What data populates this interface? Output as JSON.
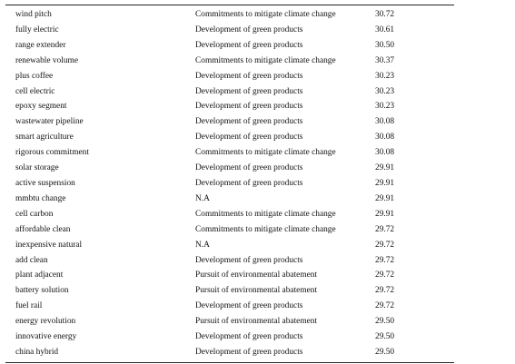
{
  "table": {
    "rows": [
      {
        "term": "wind pitch",
        "category": "Commitments to mitigate climate change",
        "value": "30.72"
      },
      {
        "term": "fully electric",
        "category": "Development of green products",
        "value": "30.61"
      },
      {
        "term": "range extender",
        "category": "Development of green products",
        "value": "30.50"
      },
      {
        "term": "renewable volume",
        "category": "Commitments to mitigate climate change",
        "value": "30.37"
      },
      {
        "term": "plus coffee",
        "category": "Development of green products",
        "value": "30.23"
      },
      {
        "term": "cell electric",
        "category": "Development of green products",
        "value": "30.23"
      },
      {
        "term": "epoxy segment",
        "category": "Development of green products",
        "value": "30.23"
      },
      {
        "term": "wastewater pipeline",
        "category": "Development of green products",
        "value": "30.08"
      },
      {
        "term": "smart agriculture",
        "category": "Development of green products",
        "value": "30.08"
      },
      {
        "term": "rigorous commitment",
        "category": "Commitments to mitigate climate change",
        "value": "30.08"
      },
      {
        "term": "solar storage",
        "category": "Development of green products",
        "value": "29.91"
      },
      {
        "term": "active suspension",
        "category": "Development of green products",
        "value": "29.91"
      },
      {
        "term": "mmbtu change",
        "category": "N.A",
        "value": "29.91"
      },
      {
        "term": "cell carbon",
        "category": "Commitments to mitigate climate change",
        "value": "29.91"
      },
      {
        "term": "affordable clean",
        "category": "Commitments to mitigate climate change",
        "value": "29.72"
      },
      {
        "term": "inexpensive natural",
        "category": "N.A",
        "value": "29.72"
      },
      {
        "term": "add clean",
        "category": "Development of green products",
        "value": "29.72"
      },
      {
        "term": "plant adjacent",
        "category": "Pursuit of environmental abatement",
        "value": "29.72"
      },
      {
        "term": "battery solution",
        "category": "Pursuit of environmental abatement",
        "value": "29.72"
      },
      {
        "term": "fuel rail",
        "category": "Development of green products",
        "value": "29.72"
      },
      {
        "term": "energy revolution",
        "category": "Pursuit of environmental abatement",
        "value": "29.50"
      },
      {
        "term": "innovative energy",
        "category": "Development of green products",
        "value": "29.50"
      },
      {
        "term": "china hybrid",
        "category": "Development of green products",
        "value": "29.50"
      }
    ]
  }
}
